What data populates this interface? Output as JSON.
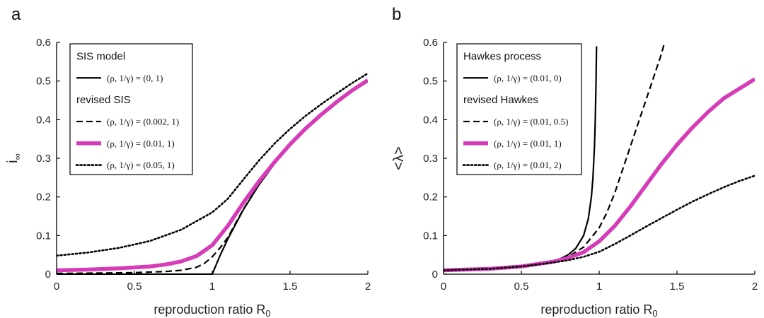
{
  "chart_data": [
    {
      "panel_letter": "a",
      "type": "line",
      "xlabel": "reproduction ratio R",
      "xlabel_sub": "0",
      "ylabel": "i",
      "ylabel_sub": "∞",
      "xlim": [
        0,
        2
      ],
      "ylim": [
        0,
        0.6
      ],
      "x_ticks": [
        "0",
        "0.5",
        "1",
        "1.5",
        "2"
      ],
      "y_ticks": [
        "0",
        "0.1",
        "0.2",
        "0.3",
        "0.4",
        "0.5",
        "0.6"
      ],
      "grid": false,
      "legend_position": "top-left",
      "legend": [
        {
          "kind": "title",
          "text": "SIS model"
        },
        {
          "kind": "entry",
          "series": 0
        },
        {
          "kind": "title",
          "text": "revised SIS"
        },
        {
          "kind": "entry",
          "series": 1
        },
        {
          "kind": "entry",
          "series": 2
        },
        {
          "kind": "entry",
          "series": 3
        }
      ],
      "series": [
        {
          "name": "(ρ, 1/γ) = (0, 1)",
          "color": "#000000",
          "style": "solid",
          "width": 2.2,
          "x": [
            0,
            1.0,
            1.05,
            1.1,
            1.2,
            1.3,
            1.4,
            1.5,
            1.6,
            1.7,
            1.8,
            1.9,
            2.0
          ],
          "y": [
            0,
            0,
            0.048,
            0.091,
            0.167,
            0.231,
            0.286,
            0.333,
            0.375,
            0.412,
            0.444,
            0.474,
            0.5
          ]
        },
        {
          "name": "(ρ, 1/γ) = (0.002, 1)",
          "color": "#000000",
          "style": "dashed",
          "width": 2.2,
          "x": [
            0,
            0.3,
            0.5,
            0.7,
            0.8,
            0.9,
            0.95,
            1.0,
            1.05,
            1.1,
            1.2,
            1.3,
            1.4,
            1.5,
            1.6,
            1.7,
            1.8,
            1.9,
            2.0
          ],
          "y": [
            0.002,
            0.003,
            0.004,
            0.007,
            0.01,
            0.018,
            0.028,
            0.045,
            0.068,
            0.095,
            0.168,
            0.232,
            0.287,
            0.334,
            0.376,
            0.413,
            0.445,
            0.475,
            0.501
          ]
        },
        {
          "name": "(ρ, 1/γ) = (0.01, 1)",
          "color": "#d63cb8",
          "style": "solid",
          "width": 5.5,
          "x": [
            0,
            0.2,
            0.4,
            0.6,
            0.7,
            0.8,
            0.9,
            1.0,
            1.1,
            1.2,
            1.3,
            1.4,
            1.5,
            1.6,
            1.7,
            1.8,
            1.9,
            2.0
          ],
          "y": [
            0.01,
            0.012,
            0.015,
            0.02,
            0.025,
            0.033,
            0.047,
            0.075,
            0.125,
            0.185,
            0.24,
            0.29,
            0.336,
            0.377,
            0.413,
            0.446,
            0.476,
            0.502
          ]
        },
        {
          "name": "(ρ, 1/γ) = (0.05, 1)",
          "color": "#000000",
          "style": "dotted",
          "width": 2.6,
          "x": [
            0,
            0.2,
            0.4,
            0.6,
            0.8,
            1.0,
            1.1,
            1.2,
            1.3,
            1.4,
            1.5,
            1.6,
            1.7,
            1.8,
            1.9,
            2.0
          ],
          "y": [
            0.048,
            0.056,
            0.068,
            0.086,
            0.115,
            0.16,
            0.195,
            0.245,
            0.294,
            0.338,
            0.376,
            0.41,
            0.44,
            0.468,
            0.495,
            0.52
          ]
        }
      ]
    },
    {
      "panel_letter": "b",
      "type": "line",
      "xlabel": "reproduction ratio R",
      "xlabel_sub": "0",
      "ylabel": "<λ>",
      "ylabel_sub": "",
      "xlim": [
        0,
        2
      ],
      "ylim": [
        0,
        0.6
      ],
      "x_ticks": [
        "0",
        "0.5",
        "1",
        "1.5",
        "2"
      ],
      "y_ticks": [
        "0",
        "0.1",
        "0.2",
        "0.3",
        "0.4",
        "0.5",
        "0.6"
      ],
      "grid": false,
      "legend_position": "top-left",
      "legend": [
        {
          "kind": "title",
          "text": "Hawkes process"
        },
        {
          "kind": "entry",
          "series": 0
        },
        {
          "kind": "title",
          "text": "revised Hawkes"
        },
        {
          "kind": "entry",
          "series": 1
        },
        {
          "kind": "entry",
          "series": 2
        },
        {
          "kind": "entry",
          "series": 3
        }
      ],
      "series": [
        {
          "name": "(ρ, 1/γ) = (0.01, 0)",
          "color": "#000000",
          "style": "solid",
          "width": 2.2,
          "x": [
            0,
            0.3,
            0.5,
            0.6,
            0.7,
            0.75,
            0.8,
            0.85,
            0.9,
            0.93,
            0.95,
            0.96,
            0.97,
            0.975,
            0.98,
            0.983
          ],
          "y": [
            0.01,
            0.014,
            0.02,
            0.025,
            0.033,
            0.04,
            0.05,
            0.067,
            0.1,
            0.143,
            0.2,
            0.25,
            0.333,
            0.4,
            0.5,
            0.59
          ]
        },
        {
          "name": "(ρ, 1/γ) = (0.01, 0.5)",
          "color": "#000000",
          "style": "dashed",
          "width": 2.2,
          "x": [
            0,
            0.3,
            0.5,
            0.7,
            0.8,
            0.9,
            1.0,
            1.05,
            1.1,
            1.15,
            1.2,
            1.25,
            1.3,
            1.35,
            1.4,
            1.42
          ],
          "y": [
            0.01,
            0.014,
            0.02,
            0.033,
            0.045,
            0.07,
            0.12,
            0.16,
            0.21,
            0.27,
            0.33,
            0.39,
            0.45,
            0.51,
            0.57,
            0.6
          ]
        },
        {
          "name": "(ρ, 1/γ) = (0.01, 1)",
          "color": "#d63cb8",
          "style": "solid",
          "width": 5.5,
          "x": [
            0,
            0.3,
            0.5,
            0.7,
            0.8,
            0.9,
            1.0,
            1.1,
            1.2,
            1.3,
            1.4,
            1.5,
            1.6,
            1.7,
            1.8,
            1.9,
            2.0
          ],
          "y": [
            0.01,
            0.014,
            0.02,
            0.032,
            0.042,
            0.057,
            0.085,
            0.125,
            0.175,
            0.23,
            0.285,
            0.335,
            0.38,
            0.42,
            0.455,
            0.48,
            0.505
          ]
        },
        {
          "name": "(ρ, 1/γ) = (0.01, 2)",
          "color": "#000000",
          "style": "dotted",
          "width": 2.6,
          "x": [
            0,
            0.3,
            0.5,
            0.7,
            0.8,
            0.9,
            1.0,
            1.1,
            1.2,
            1.3,
            1.4,
            1.5,
            1.6,
            1.7,
            1.8,
            1.9,
            2.0
          ],
          "y": [
            0.01,
            0.014,
            0.02,
            0.03,
            0.036,
            0.045,
            0.058,
            0.078,
            0.1,
            0.123,
            0.145,
            0.167,
            0.188,
            0.207,
            0.225,
            0.241,
            0.255
          ]
        }
      ]
    }
  ]
}
